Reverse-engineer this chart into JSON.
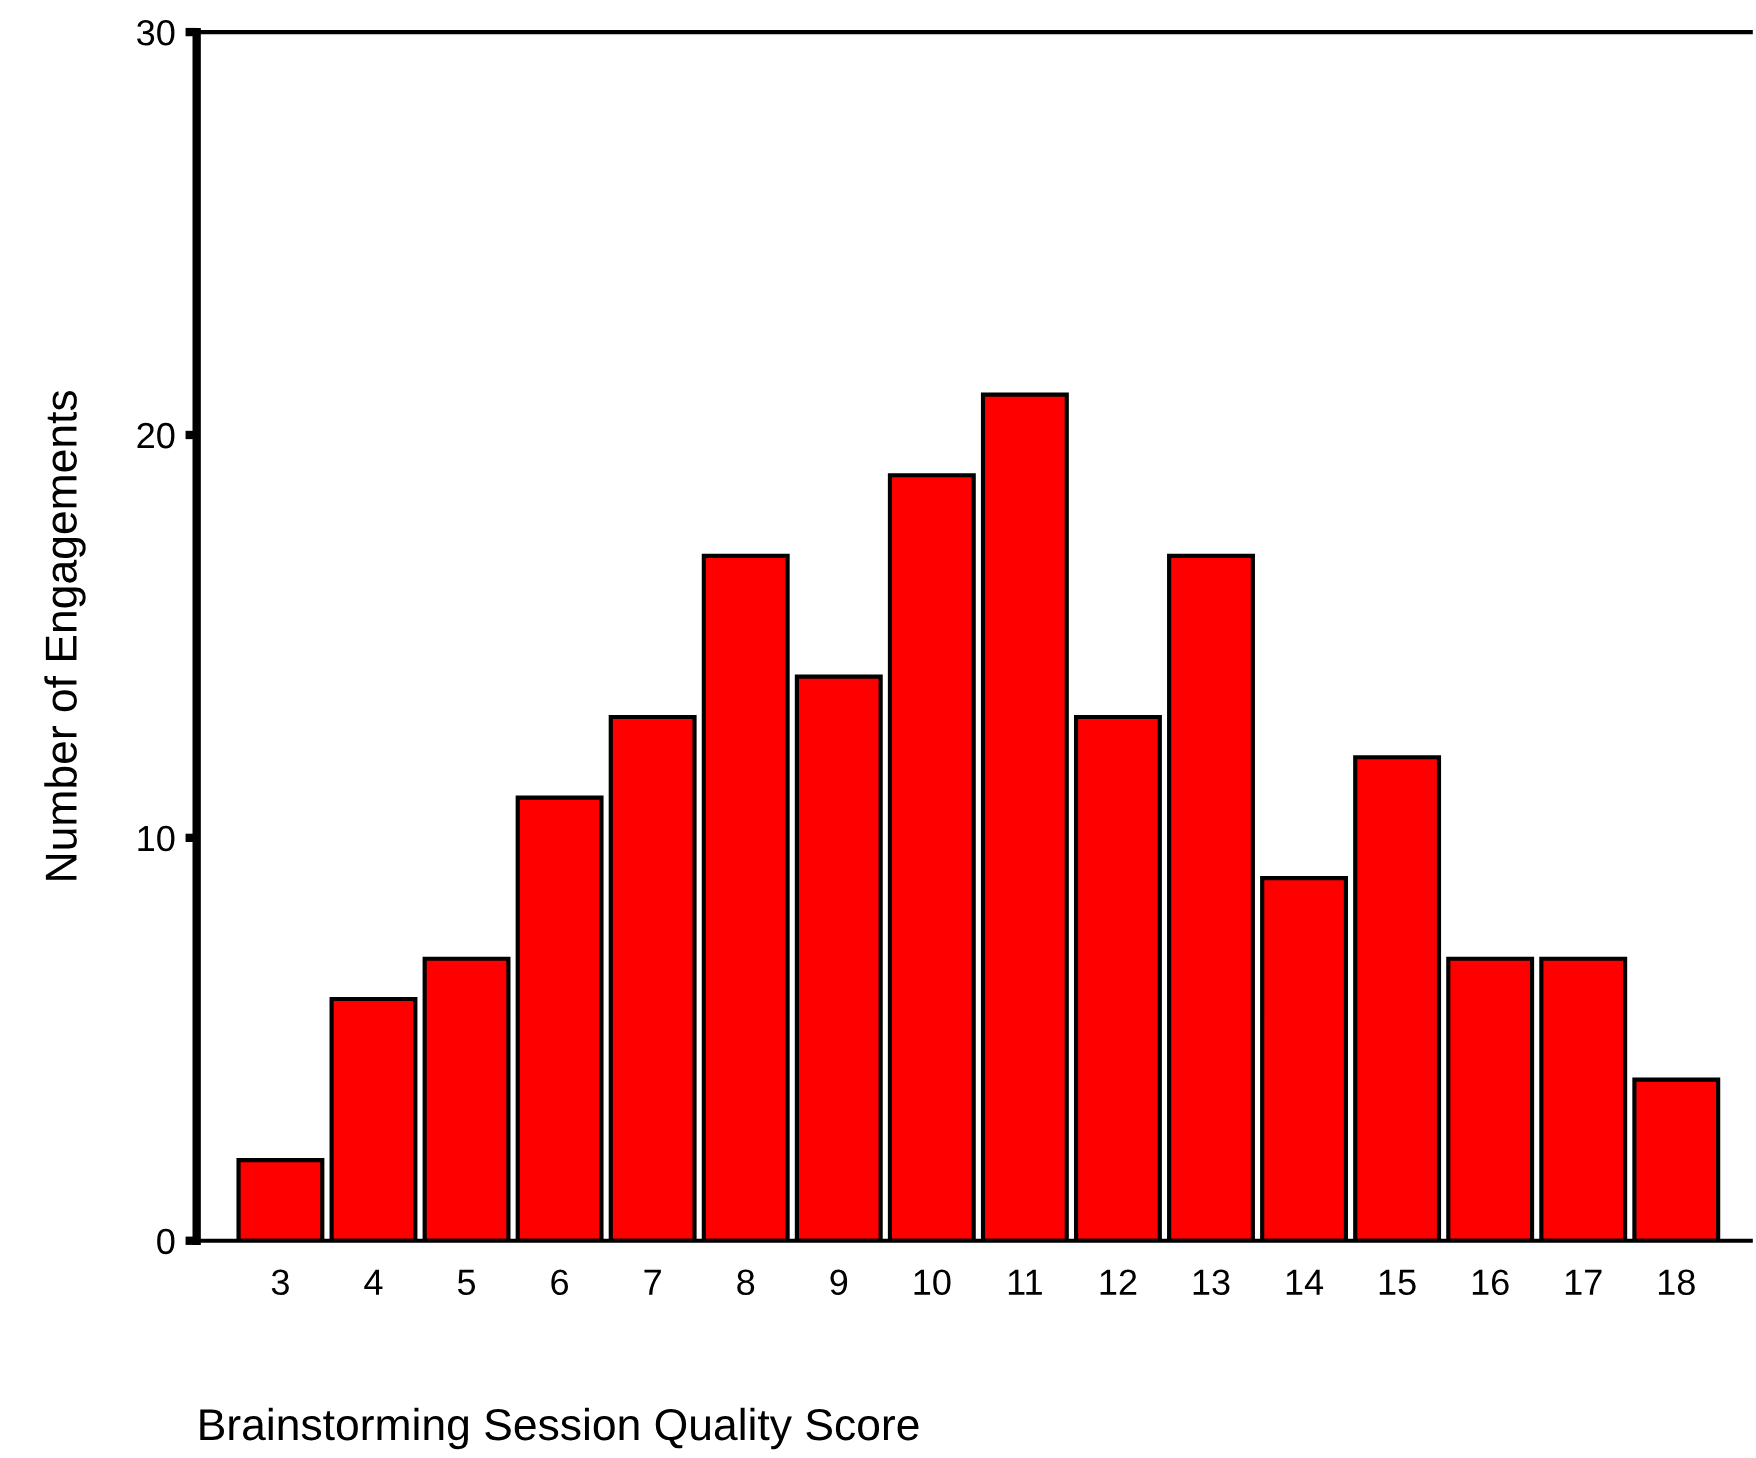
{
  "chart_data": {
    "type": "bar",
    "xlabel": "Brainstorming Session Quality Score",
    "ylabel": "Number of Engagements",
    "categories": [
      "3",
      "4",
      "5",
      "6",
      "7",
      "8",
      "9",
      "10",
      "11",
      "12",
      "13",
      "14",
      "15",
      "16",
      "17",
      "18"
    ],
    "values": [
      2,
      6,
      7,
      11,
      13,
      17,
      14,
      19,
      21,
      13,
      17,
      9,
      12,
      7,
      7,
      4
    ],
    "color": "#ff0000",
    "ylim": [
      0,
      30
    ],
    "yticks": [
      0,
      10,
      20,
      30
    ],
    "grid": false
  }
}
